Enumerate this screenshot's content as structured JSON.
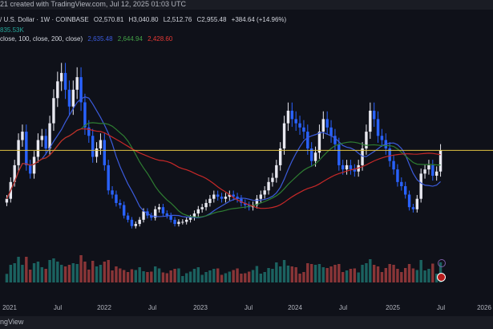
{
  "header": {
    "watermark_line": "21 created with TradingView.com, Jul 12, 2025 01:03 UTC"
  },
  "legend": {
    "symbol_line_prefix": "/ U.S. Dollar · 1W · COINBASE",
    "open": "O2,570.81",
    "high": "H3,040.80",
    "low": "L2,512.76",
    "close": "C2,955.48",
    "change": "+384.64 (+14.96%)",
    "volume": "835.53K",
    "ma_prefix": "close, 100, close, 200, close)",
    "ma_values": [
      "2,635.48",
      "2,644.94",
      "2,428.60"
    ]
  },
  "footer": {
    "text": "ngView"
  },
  "colors": {
    "up": "#26a69a",
    "down": "#ef5350",
    "candle_up": "#e8e8f0",
    "candle_down": "#2962ff",
    "ma50": "#3b5bdb",
    "ma100": "#2e7d32",
    "ma200": "#c62828",
    "price_line": "#e0c341"
  },
  "chart_data": {
    "type": "candlestick",
    "x_ticks": [
      "2021",
      "Jul",
      "2022",
      "Jul",
      "2023",
      "Jul",
      "2024",
      "Jul",
      "2025",
      "Jul",
      "2026"
    ],
    "close_series": [
      1800,
      2200,
      2600,
      3200,
      3400,
      2600,
      2400,
      2800,
      3200,
      3300,
      3000,
      3600,
      4200,
      4600,
      4800,
      4400,
      4000,
      4400,
      4700,
      4100,
      3500,
      3300,
      2800,
      3000,
      3200,
      2600,
      2000,
      1900,
      1700,
      1650,
      1400,
      1300,
      1150,
      1200,
      1300,
      1500,
      1400,
      1350,
      1550,
      1600,
      1450,
      1400,
      1300,
      1200,
      1250,
      1250,
      1300,
      1350,
      1450,
      1550,
      1600,
      1700,
      1800,
      1900,
      1850,
      1800,
      1850,
      1900,
      1850,
      1800,
      1700,
      1650,
      1600,
      1650,
      1800,
      1900,
      2000,
      2200,
      2300,
      2600,
      3000,
      3600,
      3900,
      3700,
      3600,
      3500,
      3400,
      3000,
      2700,
      2900,
      3400,
      3700,
      3500,
      3300,
      3100,
      2600,
      2500,
      2600,
      2500,
      2450,
      2600,
      3000,
      3400,
      3900,
      3700,
      3300,
      3200,
      3000,
      2700,
      2500,
      2200,
      2100,
      1900,
      1600,
      1550,
      1800,
      2400,
      2500,
      2600,
      2350,
      2450,
      2955
    ],
    "ylim": [
      800,
      5200
    ],
    "current_price": 2955.48
  }
}
